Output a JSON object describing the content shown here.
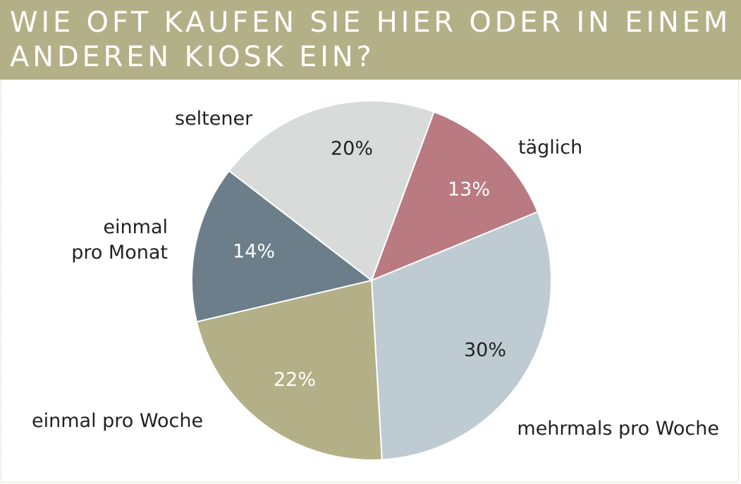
{
  "title": "WIE OFT KAUFEN SIE HIER ODER IN EINEM ANDEREN KIOSK EIN?",
  "chart_data": {
    "type": "pie",
    "slices": [
      {
        "label": "täglich",
        "value": 13,
        "value_label": "13%",
        "color": "#b97a82",
        "text_color": "#ffffff"
      },
      {
        "label": "mehrmals pro Woche",
        "value": 30,
        "value_label": "30%",
        "color": "#bfcbd2",
        "text_color": "#222222"
      },
      {
        "label": "einmal pro Woche",
        "value": 22,
        "value_label": "22%",
        "color": "#b3b087",
        "text_color": "#ffffff"
      },
      {
        "label": "einmal pro Monat",
        "value": 14,
        "value_label": "14%",
        "color": "#6b7e8a",
        "text_color": "#ffffff"
      },
      {
        "label": "seltener",
        "value": 20,
        "value_label": "20%",
        "color": "#d9dbdb",
        "text_color": "#222222"
      }
    ]
  }
}
